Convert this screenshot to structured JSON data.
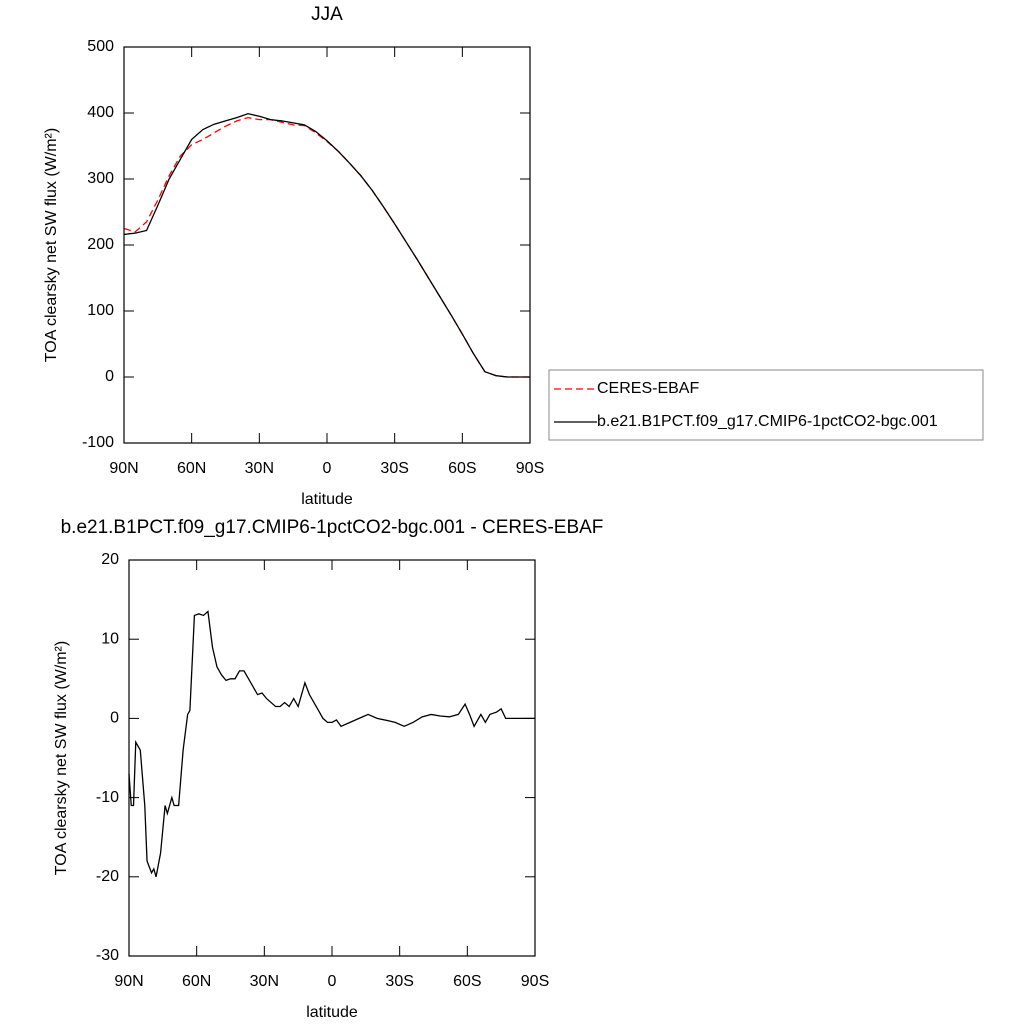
{
  "chart_data": [
    {
      "type": "line",
      "title": "JJA",
      "xlabel": "latitude",
      "ylabel": "TOA clearsky net SW flux (W/m²)",
      "x": [
        90,
        85,
        80,
        75,
        70,
        65,
        60,
        55,
        50,
        45,
        40,
        35,
        30,
        25,
        20,
        15,
        10,
        5,
        0,
        -5,
        -10,
        -15,
        -20,
        -25,
        -30,
        -35,
        -40,
        -45,
        -50,
        -55,
        -60,
        -65,
        -70,
        -75,
        -80,
        -85,
        -90
      ],
      "series": [
        {
          "name": "CERES-EBAF",
          "color": "#ff0000",
          "linestyle": "dashed",
          "values": [
            225,
            220,
            235,
            268,
            305,
            335,
            352,
            360,
            370,
            380,
            388,
            393,
            390,
            390,
            386,
            382,
            381,
            370,
            357,
            342,
            324,
            305,
            283,
            258,
            232,
            205,
            178,
            150,
            122,
            94,
            65,
            35,
            8,
            2,
            0,
            0,
            0
          ]
        },
        {
          "name": "b.e21.B1PCT.f09_g17.CMIP6-1pctCO2-bgc.001",
          "color": "#000000",
          "linestyle": "solid",
          "values": [
            216,
            218,
            222,
            260,
            300,
            330,
            360,
            375,
            383,
            388,
            393,
            399,
            395,
            390,
            388,
            385,
            382,
            372,
            358,
            342,
            324,
            305,
            283,
            258,
            232,
            205,
            178,
            150,
            122,
            94,
            65,
            35,
            8,
            2,
            0,
            0,
            0
          ]
        }
      ],
      "xlim": [
        90,
        -90
      ],
      "xticks": [
        {
          "value": 90,
          "label": "90N"
        },
        {
          "value": 60,
          "label": "60N"
        },
        {
          "value": 30,
          "label": "30N"
        },
        0,
        {
          "value": -30,
          "label": "30S"
        },
        {
          "value": -60,
          "label": "60S"
        },
        {
          "value": -90,
          "label": "90S"
        }
      ],
      "ylim": [
        -100,
        500
      ],
      "yticks": [
        -100,
        0,
        100,
        200,
        300,
        400,
        500
      ],
      "legend": "right"
    },
    {
      "type": "line",
      "title": "b.e21.B1PCT.f09_g17.CMIP6-1pctCO2-bgc.001 - CERES-EBAF",
      "xlabel": "latitude",
      "ylabel": "TOA clearsky net SW flux (W/m²)",
      "x": [
        90,
        89,
        88,
        87,
        85,
        83,
        82,
        80,
        79,
        78,
        76,
        74,
        73,
        71,
        70,
        68,
        66,
        64,
        63,
        61,
        59,
        57,
        55,
        53,
        51,
        49,
        47,
        45,
        43,
        41,
        39,
        37,
        35,
        33,
        31,
        29,
        27,
        25,
        23,
        21,
        19,
        17,
        15,
        12,
        10,
        8,
        6,
        4,
        2,
        0,
        -2,
        -4,
        -8,
        -12,
        -16,
        -20,
        -25,
        -28,
        -32,
        -36,
        -40,
        -44,
        -48,
        -52,
        -56,
        -59,
        -61,
        -63,
        -66,
        -68,
        -70,
        -73,
        -75,
        -77,
        -80,
        -90
      ],
      "series": [
        {
          "color": "#000000",
          "linestyle": "solid",
          "values": [
            -7,
            -11,
            -11,
            -3,
            -4,
            -11,
            -18,
            -19.5,
            -19,
            -20,
            -17,
            -11,
            -12,
            -10,
            -11,
            -11,
            -4,
            0.5,
            1,
            13,
            13.2,
            13,
            13.5,
            9,
            6.5,
            5.5,
            4.8,
            5,
            5,
            6,
            6,
            5,
            4,
            3,
            3.2,
            2.5,
            2,
            1.5,
            1.5,
            2,
            1.5,
            2.5,
            1.5,
            4.5,
            3,
            2,
            1,
            0,
            -0.5,
            -0.5,
            -0.2,
            -1,
            -0.5,
            0,
            0.5,
            0,
            -0.3,
            -0.5,
            -1,
            -0.5,
            0.2,
            0.5,
            0.3,
            0.2,
            0.5,
            1.8,
            0.5,
            -1,
            0.5,
            -0.5,
            0.5,
            0.8,
            1.2,
            0,
            0,
            0
          ]
        }
      ],
      "xlim": [
        90,
        -90
      ],
      "xticks": [
        {
          "value": 90,
          "label": "90N"
        },
        {
          "value": 60,
          "label": "60N"
        },
        {
          "value": 30,
          "label": "30N"
        },
        0,
        {
          "value": -30,
          "label": "30S"
        },
        {
          "value": -60,
          "label": "60S"
        },
        {
          "value": -90,
          "label": "90S"
        }
      ],
      "ylim": [
        -30,
        20
      ],
      "yticks": [
        -30,
        -20,
        -10,
        0,
        10,
        20
      ]
    }
  ]
}
